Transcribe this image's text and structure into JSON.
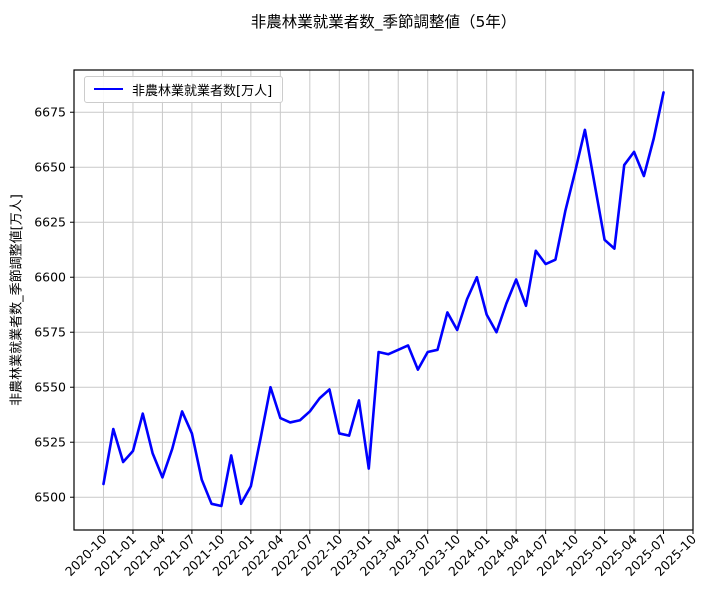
{
  "chart_data": {
    "type": "line",
    "title": "非農林業就業者数_季節調整値（5年）",
    "ylabel": "非農林業就業者数_季節調整値[万人]",
    "xlabel": "",
    "grid": true,
    "legend_position": "upper left",
    "line_color": "#0000ff",
    "grid_color": "#c9c9c9",
    "spine_color": "#000000",
    "y_ticks": [
      6500,
      6525,
      6550,
      6575,
      6600,
      6625,
      6650,
      6675
    ],
    "ylim": [
      6485.1,
      6694.2
    ],
    "x_tick_labels": [
      "2020-10",
      "2021-01",
      "2021-04",
      "2021-07",
      "2021-10",
      "2022-01",
      "2022-04",
      "2022-07",
      "2022-10",
      "2023-01",
      "2023-04",
      "2023-07",
      "2023-10",
      "2024-01",
      "2024-04",
      "2024-07",
      "2024-10",
      "2025-01",
      "2025-04",
      "2025-07",
      "2025-10"
    ],
    "categories": [
      "2020-10",
      "2020-11",
      "2020-12",
      "2021-01",
      "2021-02",
      "2021-03",
      "2021-04",
      "2021-05",
      "2021-06",
      "2021-07",
      "2021-08",
      "2021-09",
      "2021-10",
      "2021-11",
      "2021-12",
      "2022-01",
      "2022-02",
      "2022-03",
      "2022-04",
      "2022-05",
      "2022-06",
      "2022-07",
      "2022-08",
      "2022-09",
      "2022-10",
      "2022-11",
      "2022-12",
      "2023-01",
      "2023-02",
      "2023-03",
      "2023-04",
      "2023-05",
      "2023-06",
      "2023-07",
      "2023-08",
      "2023-09",
      "2023-10",
      "2023-11",
      "2023-12",
      "2024-01",
      "2024-02",
      "2024-03",
      "2024-04",
      "2024-05",
      "2024-06",
      "2024-07",
      "2024-08",
      "2024-09",
      "2024-10",
      "2024-11",
      "2024-12",
      "2025-01",
      "2025-02",
      "2025-03",
      "2025-04",
      "2025-05",
      "2025-06",
      "2025-07"
    ],
    "series": [
      {
        "name": "非農林業就業者数[万人]",
        "values": [
          6506,
          6531,
          6516,
          6521,
          6538,
          6520,
          6509,
          6522,
          6539,
          6529,
          6508,
          6497,
          6496,
          6519,
          6497,
          6505,
          6527,
          6550,
          6536,
          6534,
          6535,
          6539,
          6545,
          6549,
          6529,
          6528,
          6544,
          6513,
          6566,
          6565,
          6567,
          6569,
          6558,
          6566,
          6567,
          6584,
          6576,
          6590,
          6600,
          6583,
          6575,
          6588,
          6599,
          6587,
          6612,
          6606,
          6608,
          6630,
          6648,
          6667,
          6642,
          6617,
          6613,
          6651,
          6657,
          6646,
          6663,
          6684
        ]
      }
    ]
  }
}
